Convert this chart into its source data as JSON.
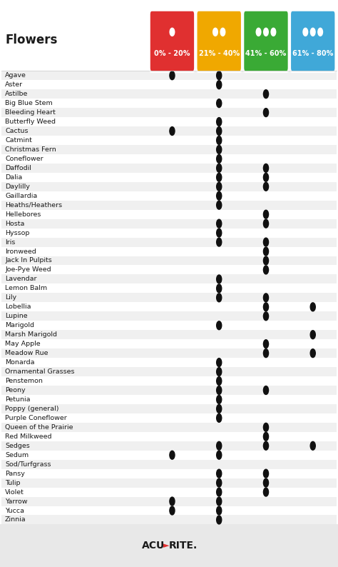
{
  "title": "Flowers",
  "columns": [
    "0% - 20%",
    "21% - 40%",
    "41% - 60%",
    "61% - 80%"
  ],
  "col_colors": [
    "#e03030",
    "#f0a800",
    "#3aaa35",
    "#40a8d8"
  ],
  "flowers": [
    "Agave",
    "Aster",
    "Astilbe",
    "Big Blue Stem",
    "Bleeding Heart",
    "Butterfly Weed",
    "Cactus",
    "Catmint",
    "Christmas Fern",
    "Coneflower",
    "Daffodil",
    "Dalia",
    "Daylilly",
    "Gaillardia",
    "Heaths/Heathers",
    "Hellebores",
    "Hosta",
    "Hyssop",
    "Iris",
    "Ironweed",
    "Jack In Pulpits",
    "Joe-Pye Weed",
    "Lavendar",
    "Lemon Balm",
    "Lily",
    "Lobellia",
    "Lupine",
    "Marigold",
    "Marsh Marigold",
    "May Apple",
    "Meadow Rue",
    "Monarda",
    "Ornamental Grasses",
    "Penstemon",
    "Peony",
    "Petunia",
    "Poppy (general)",
    "Purple Coneflower",
    "Queen of the Prairie",
    "Red Milkweed",
    "Sedges",
    "Sedum",
    "Sod/Turfgrass",
    "Pansy",
    "Tulip",
    "Violet",
    "Yarrow",
    "Yucca",
    "Zinnia"
  ],
  "dots": {
    "Agave": [
      1,
      1,
      0,
      0
    ],
    "Aster": [
      0,
      1,
      0,
      0
    ],
    "Astilbe": [
      0,
      0,
      1,
      0
    ],
    "Big Blue Stem": [
      0,
      1,
      0,
      0
    ],
    "Bleeding Heart": [
      0,
      0,
      1,
      0
    ],
    "Butterfly Weed": [
      0,
      1,
      0,
      0
    ],
    "Cactus": [
      1,
      1,
      0,
      0
    ],
    "Catmint": [
      0,
      1,
      0,
      0
    ],
    "Christmas Fern": [
      0,
      1,
      0,
      0
    ],
    "Coneflower": [
      0,
      1,
      0,
      0
    ],
    "Daffodil": [
      0,
      1,
      1,
      0
    ],
    "Dalia": [
      0,
      1,
      1,
      0
    ],
    "Daylilly": [
      0,
      1,
      1,
      0
    ],
    "Gaillardia": [
      0,
      1,
      0,
      0
    ],
    "Heaths/Heathers": [
      0,
      1,
      0,
      0
    ],
    "Hellebores": [
      0,
      0,
      1,
      0
    ],
    "Hosta": [
      0,
      1,
      1,
      0
    ],
    "Hyssop": [
      0,
      1,
      0,
      0
    ],
    "Iris": [
      0,
      1,
      1,
      0
    ],
    "Ironweed": [
      0,
      0,
      1,
      0
    ],
    "Jack In Pulpits": [
      0,
      0,
      1,
      0
    ],
    "Joe-Pye Weed": [
      0,
      0,
      1,
      0
    ],
    "Lavendar": [
      0,
      1,
      0,
      0
    ],
    "Lemon Balm": [
      0,
      1,
      0,
      0
    ],
    "Lily": [
      0,
      1,
      1,
      0
    ],
    "Lobellia": [
      0,
      0,
      1,
      1
    ],
    "Lupine": [
      0,
      0,
      1,
      0
    ],
    "Marigold": [
      0,
      1,
      0,
      0
    ],
    "Marsh Marigold": [
      0,
      0,
      0,
      1
    ],
    "May Apple": [
      0,
      0,
      1,
      0
    ],
    "Meadow Rue": [
      0,
      0,
      1,
      1
    ],
    "Monarda": [
      0,
      1,
      0,
      0
    ],
    "Ornamental Grasses": [
      0,
      1,
      0,
      0
    ],
    "Penstemon": [
      0,
      1,
      0,
      0
    ],
    "Peony": [
      0,
      1,
      1,
      0
    ],
    "Petunia": [
      0,
      1,
      0,
      0
    ],
    "Poppy (general)": [
      0,
      1,
      0,
      0
    ],
    "Purple Coneflower": [
      0,
      1,
      0,
      0
    ],
    "Queen of the Prairie": [
      0,
      0,
      1,
      0
    ],
    "Red Milkweed": [
      0,
      0,
      1,
      0
    ],
    "Sedges": [
      0,
      1,
      1,
      1
    ],
    "Sedum": [
      1,
      1,
      0,
      0
    ],
    "Sod/Turfgrass": [
      0,
      0,
      0,
      0
    ],
    "Pansy": [
      0,
      1,
      1,
      0
    ],
    "Tulip": [
      0,
      1,
      1,
      0
    ],
    "Violet": [
      0,
      1,
      1,
      0
    ],
    "Yarrow": [
      1,
      1,
      0,
      0
    ],
    "Yucca": [
      1,
      1,
      0,
      0
    ],
    "Zinnia": [
      0,
      1,
      0,
      0
    ]
  },
  "background_color": "#ffffff",
  "row_alt_color": "#f0f0f0",
  "row_base_color": "#ffffff",
  "footer_bg": "#e8e8e8",
  "drop_counts": [
    1,
    2,
    3,
    3
  ]
}
